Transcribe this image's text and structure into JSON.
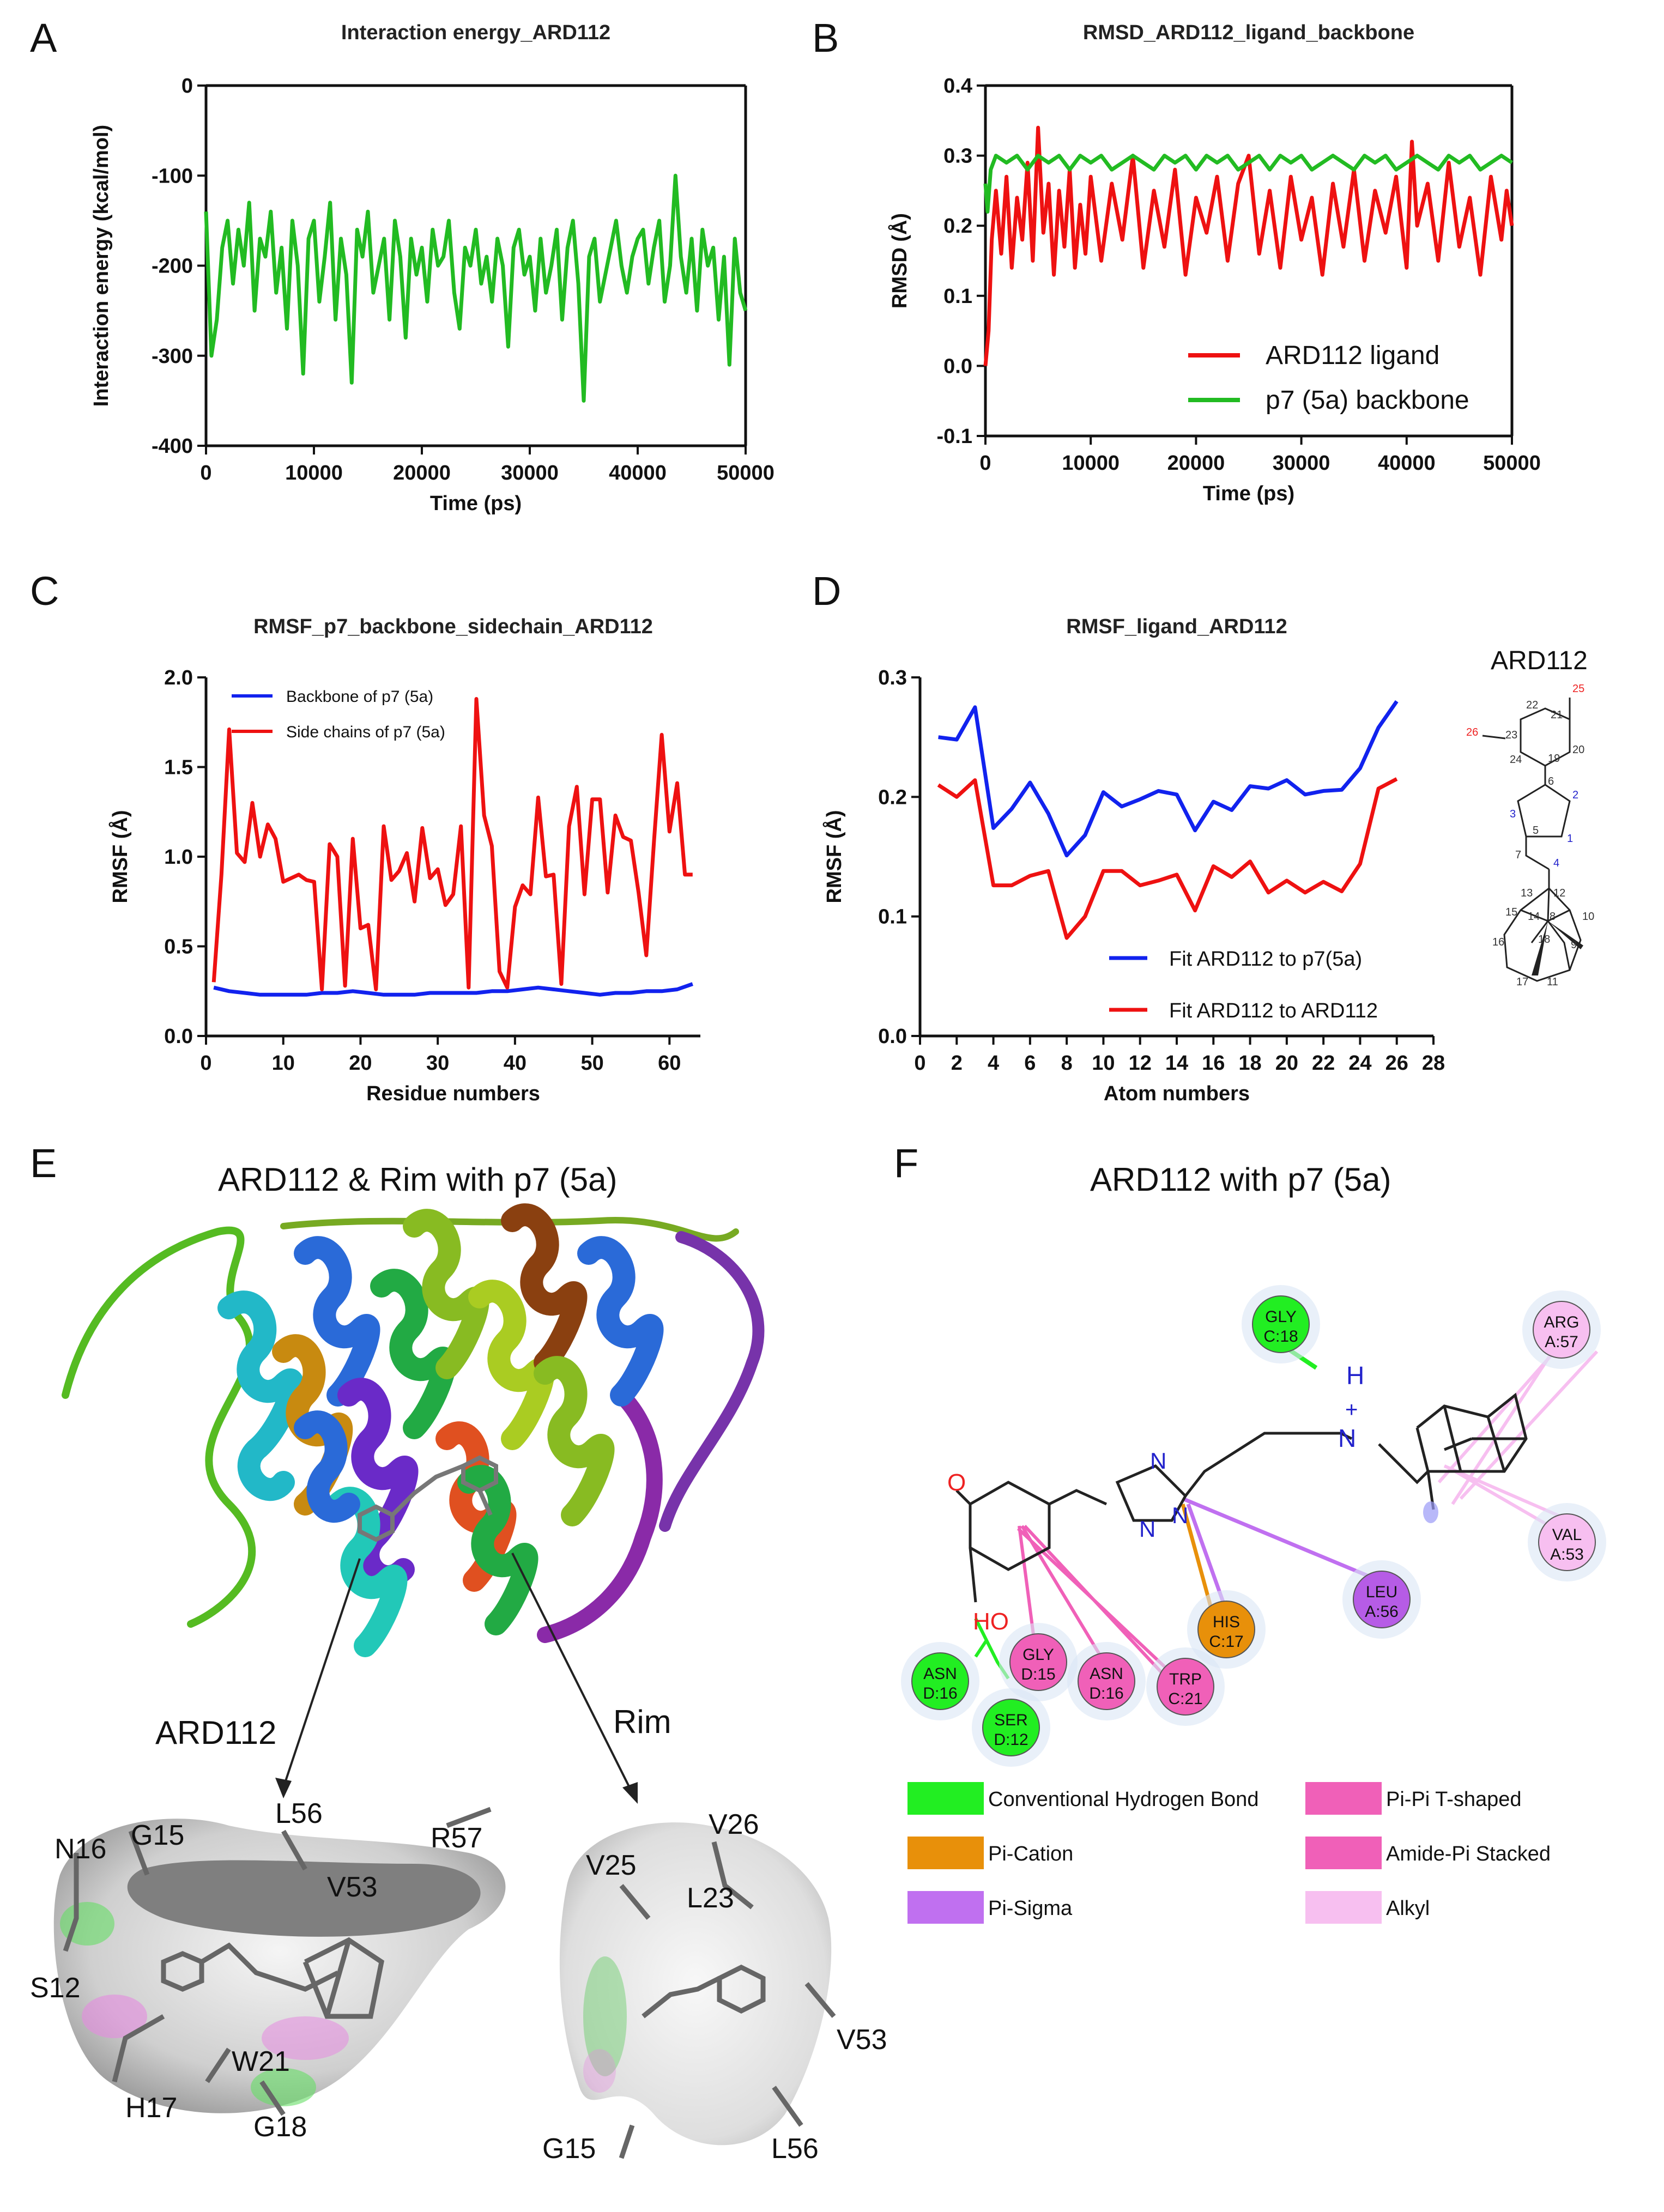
{
  "panels": {
    "A": "A",
    "B": "B",
    "C": "C",
    "D": "D",
    "E": "E",
    "F": "F"
  },
  "chart_data": [
    {
      "panel": "A",
      "type": "line",
      "title": "Interaction energy_ARD112",
      "xlabel": "Time (ps)",
      "ylabel": "Interaction energy (kcal/mol)",
      "xlim": [
        0,
        50000
      ],
      "ylim": [
        -400,
        0
      ],
      "xticks": [
        0,
        10000,
        20000,
        30000,
        40000,
        50000
      ],
      "yticks": [
        0,
        -100,
        -200,
        -300,
        -400
      ],
      "series": [
        {
          "name": "Interaction energy",
          "color": "#22bb22",
          "x": [
            0,
            500,
            1000,
            1500,
            2000,
            2500,
            3000,
            3500,
            4000,
            4500,
            5000,
            5500,
            6000,
            6500,
            7000,
            7500,
            8000,
            8500,
            9000,
            9500,
            10000,
            10500,
            11000,
            11500,
            12000,
            12500,
            13000,
            13500,
            14000,
            14500,
            15000,
            15500,
            16000,
            16500,
            17000,
            17500,
            18000,
            18500,
            19000,
            19500,
            20000,
            20500,
            21000,
            21500,
            22000,
            22500,
            23000,
            23500,
            24000,
            24500,
            25000,
            25500,
            26000,
            26500,
            27000,
            27500,
            28000,
            28500,
            29000,
            29500,
            30000,
            30500,
            31000,
            31500,
            32000,
            32500,
            33000,
            33500,
            34000,
            34500,
            35000,
            35500,
            36000,
            36500,
            37000,
            37500,
            38000,
            38500,
            39000,
            39500,
            40000,
            40500,
            41000,
            41500,
            42000,
            42500,
            43000,
            43500,
            44000,
            44500,
            45000,
            45500,
            46000,
            46500,
            47000,
            47500,
            48000,
            48500,
            49000,
            49500,
            50000
          ],
          "values": [
            -140,
            -300,
            -260,
            -180,
            -150,
            -220,
            -160,
            -200,
            -130,
            -250,
            -170,
            -190,
            -140,
            -230,
            -180,
            -270,
            -150,
            -200,
            -320,
            -170,
            -150,
            -240,
            -190,
            -130,
            -260,
            -170,
            -210,
            -330,
            -160,
            -190,
            -140,
            -230,
            -200,
            -170,
            -260,
            -150,
            -190,
            -280,
            -170,
            -210,
            -180,
            -240,
            -160,
            -200,
            -190,
            -150,
            -230,
            -270,
            -180,
            -200,
            -160,
            -220,
            -190,
            -240,
            -170,
            -200,
            -290,
            -180,
            -160,
            -210,
            -190,
            -250,
            -170,
            -230,
            -200,
            -160,
            -260,
            -180,
            -150,
            -220,
            -350,
            -190,
            -170,
            -240,
            -210,
            -180,
            -150,
            -200,
            -230,
            -190,
            -170,
            -160,
            -220,
            -180,
            -150,
            -240,
            -200,
            -100,
            -190,
            -230,
            -170,
            -250,
            -160,
            -200,
            -180,
            -260,
            -190,
            -310,
            -170,
            -230,
            -250
          ]
        }
      ]
    },
    {
      "panel": "B",
      "type": "line",
      "title": "RMSD_ARD112_ligand_backbone",
      "xlabel": "Time (ps)",
      "ylabel": "RMSD (Å)",
      "xlim": [
        0,
        50000
      ],
      "ylim": [
        -0.1,
        0.4
      ],
      "xticks": [
        0,
        10000,
        20000,
        30000,
        40000,
        50000
      ],
      "yticks": [
        0.4,
        0.3,
        0.2,
        0.1,
        0.0,
        -0.1
      ],
      "ytick_labels": [
        "0.4",
        "0.3",
        "0.2",
        "0.1",
        "0.0",
        "-0.1"
      ],
      "legend": "bottom-right",
      "series": [
        {
          "name": "ARD112 ligand",
          "color": "#ee1111",
          "x": [
            0,
            300,
            600,
            1000,
            1500,
            2000,
            2500,
            3000,
            3500,
            4000,
            4500,
            5000,
            5500,
            6000,
            6500,
            7000,
            7500,
            8000,
            8500,
            9000,
            9500,
            10000,
            11000,
            12000,
            13000,
            14000,
            15000,
            16000,
            17000,
            18000,
            19000,
            20000,
            21000,
            22000,
            23000,
            24000,
            25000,
            26000,
            27000,
            28000,
            29000,
            30000,
            31000,
            32000,
            33000,
            34000,
            35000,
            36000,
            37000,
            38000,
            39000,
            40000,
            40500,
            41000,
            42000,
            43000,
            44000,
            45000,
            46000,
            47000,
            48000,
            49000,
            49500,
            50000
          ],
          "values": [
            0.0,
            0.05,
            0.18,
            0.25,
            0.16,
            0.27,
            0.14,
            0.24,
            0.18,
            0.29,
            0.15,
            0.34,
            0.19,
            0.26,
            0.13,
            0.25,
            0.17,
            0.28,
            0.14,
            0.23,
            0.16,
            0.27,
            0.15,
            0.26,
            0.18,
            0.3,
            0.14,
            0.25,
            0.17,
            0.28,
            0.13,
            0.24,
            0.19,
            0.27,
            0.15,
            0.26,
            0.3,
            0.16,
            0.25,
            0.14,
            0.27,
            0.18,
            0.24,
            0.13,
            0.26,
            0.17,
            0.28,
            0.15,
            0.25,
            0.19,
            0.27,
            0.14,
            0.32,
            0.2,
            0.26,
            0.15,
            0.29,
            0.17,
            0.24,
            0.13,
            0.27,
            0.18,
            0.25,
            0.2
          ]
        },
        {
          "name": "p7 (5a) backbone",
          "color": "#22bb22",
          "x": [
            0,
            200,
            500,
            1000,
            2000,
            3000,
            4000,
            5000,
            6000,
            7000,
            8000,
            9000,
            10000,
            11000,
            12000,
            13000,
            14000,
            15000,
            16000,
            17000,
            18000,
            19000,
            20000,
            21000,
            22000,
            23000,
            24000,
            25000,
            26000,
            27000,
            28000,
            29000,
            30000,
            31000,
            32000,
            33000,
            34000,
            35000,
            36000,
            37000,
            38000,
            39000,
            40000,
            41000,
            42000,
            43000,
            44000,
            45000,
            46000,
            47000,
            48000,
            49000,
            50000
          ],
          "values": [
            0.26,
            0.22,
            0.28,
            0.3,
            0.29,
            0.3,
            0.28,
            0.3,
            0.29,
            0.3,
            0.28,
            0.3,
            0.29,
            0.3,
            0.28,
            0.29,
            0.3,
            0.29,
            0.28,
            0.3,
            0.29,
            0.3,
            0.28,
            0.3,
            0.29,
            0.3,
            0.28,
            0.29,
            0.3,
            0.28,
            0.3,
            0.29,
            0.3,
            0.28,
            0.29,
            0.3,
            0.29,
            0.28,
            0.3,
            0.29,
            0.3,
            0.28,
            0.29,
            0.3,
            0.29,
            0.28,
            0.3,
            0.29,
            0.3,
            0.28,
            0.29,
            0.3,
            0.29
          ]
        }
      ]
    },
    {
      "panel": "C",
      "type": "line",
      "title": "RMSF_p7_backbone_sidechain_ARD112",
      "xlabel": "Residue numbers",
      "ylabel": "RMSF (Å)",
      "xlim": [
        0,
        64
      ],
      "ylim": [
        0,
        2.0
      ],
      "xticks": [
        0,
        10,
        20,
        30,
        40,
        50,
        60
      ],
      "yticks": [
        0.0,
        0.5,
        1.0,
        1.5,
        2.0
      ],
      "ytick_labels": [
        "0.0",
        "0.5",
        "1.0",
        "1.5",
        "2.0"
      ],
      "legend": "top-left",
      "series": [
        {
          "name": "Backbone of p7 (5a)",
          "color": "#1122ee",
          "x": [
            1,
            3,
            5,
            7,
            9,
            11,
            13,
            15,
            17,
            19,
            21,
            23,
            25,
            27,
            29,
            31,
            33,
            35,
            37,
            39,
            41,
            43,
            45,
            47,
            49,
            51,
            53,
            55,
            57,
            59,
            61,
            63
          ],
          "values": [
            0.27,
            0.25,
            0.24,
            0.23,
            0.23,
            0.23,
            0.23,
            0.24,
            0.24,
            0.25,
            0.24,
            0.23,
            0.23,
            0.23,
            0.24,
            0.24,
            0.24,
            0.24,
            0.25,
            0.25,
            0.26,
            0.27,
            0.26,
            0.25,
            0.24,
            0.23,
            0.24,
            0.24,
            0.25,
            0.25,
            0.26,
            0.29
          ]
        },
        {
          "name": "Side chains of p7 (5a)",
          "color": "#ee1111",
          "x": [
            1,
            2,
            3,
            4,
            5,
            6,
            7,
            8,
            9,
            10,
            11,
            12,
            13,
            14,
            15,
            16,
            17,
            18,
            19,
            20,
            21,
            22,
            23,
            24,
            25,
            26,
            27,
            28,
            29,
            30,
            31,
            32,
            33,
            34,
            35,
            36,
            37,
            38,
            39,
            40,
            41,
            42,
            43,
            44,
            45,
            46,
            47,
            48,
            49,
            50,
            51,
            52,
            53,
            54,
            55,
            56,
            57,
            58,
            59,
            60,
            61,
            62,
            63
          ],
          "values": [
            0.3,
            0.9,
            1.71,
            1.02,
            0.97,
            1.3,
            1.0,
            1.18,
            1.1,
            0.86,
            0.88,
            0.9,
            0.87,
            0.86,
            0.26,
            1.07,
            1.0,
            0.28,
            1.1,
            0.6,
            0.62,
            0.26,
            1.17,
            0.87,
            0.92,
            1.02,
            0.75,
            1.16,
            0.88,
            0.93,
            0.73,
            0.79,
            1.17,
            0.27,
            1.88,
            1.23,
            1.06,
            0.36,
            0.27,
            0.72,
            0.84,
            0.79,
            1.33,
            0.89,
            0.9,
            0.29,
            1.17,
            1.39,
            0.79,
            1.32,
            1.32,
            0.8,
            1.23,
            1.11,
            1.09,
            0.8,
            0.45,
            1.09,
            1.68,
            1.14,
            1.41,
            0.9,
            0.9
          ]
        }
      ]
    },
    {
      "panel": "D",
      "type": "line",
      "title": "RMSF_ligand_ARD112",
      "xlabel": "Atom numbers",
      "ylabel": "RMSF (Å)",
      "xlim": [
        0,
        28
      ],
      "ylim": [
        0,
        0.3
      ],
      "xticks": [
        0,
        2,
        4,
        6,
        8,
        10,
        12,
        14,
        16,
        18,
        20,
        22,
        24,
        26,
        28
      ],
      "yticks": [
        0.0,
        0.1,
        0.2,
        0.3
      ],
      "ytick_labels": [
        "0.0",
        "0.1",
        "0.2",
        "0.3"
      ],
      "legend": "bottom-right",
      "series": [
        {
          "name": "Fit ARD112 to p7(5a)",
          "color": "#1122ee",
          "x": [
            1,
            2,
            3,
            4,
            5,
            6,
            7,
            8,
            9,
            10,
            11,
            12,
            13,
            14,
            15,
            16,
            17,
            18,
            19,
            20,
            21,
            22,
            23,
            24,
            25,
            26
          ],
          "values": [
            0.25,
            0.248,
            0.275,
            0.174,
            0.19,
            0.212,
            0.186,
            0.151,
            0.168,
            0.204,
            0.192,
            0.198,
            0.205,
            0.202,
            0.172,
            0.196,
            0.189,
            0.209,
            0.207,
            0.214,
            0.202,
            0.205,
            0.206,
            0.224,
            0.258,
            0.28
          ]
        },
        {
          "name": "Fit ARD112 to ARD112",
          "color": "#ee1111",
          "x": [
            1,
            2,
            3,
            4,
            5,
            6,
            7,
            8,
            9,
            10,
            11,
            12,
            13,
            14,
            15,
            16,
            17,
            18,
            19,
            20,
            21,
            22,
            23,
            24,
            25,
            26
          ],
          "values": [
            0.21,
            0.2,
            0.214,
            0.126,
            0.126,
            0.134,
            0.138,
            0.082,
            0.1,
            0.138,
            0.138,
            0.126,
            0.13,
            0.135,
            0.105,
            0.142,
            0.133,
            0.146,
            0.12,
            0.13,
            0.12,
            0.129,
            0.121,
            0.144,
            0.207,
            0.215
          ]
        }
      ]
    }
  ],
  "structure_D": {
    "title": "ARD112",
    "atoms": [
      "25",
      "22",
      "21",
      "26",
      "23",
      "20",
      "24",
      "19",
      "6",
      "2",
      "3",
      "1",
      "5",
      "7",
      "4",
      "13",
      "12",
      "15",
      "14",
      "8",
      "18",
      "10",
      "16",
      "9",
      "17",
      "11"
    ]
  },
  "panel_E": {
    "title": "ARD112 & Rim with p7 (5a)",
    "label_left": "ARD112",
    "label_right": "Rim",
    "residues_left": [
      "N16",
      "G15",
      "L56",
      "R57",
      "V53",
      "S12",
      "W21",
      "H17",
      "G18"
    ],
    "residues_right": [
      "V26",
      "V25",
      "L23",
      "V53",
      "G15",
      "L56"
    ]
  },
  "panel_F": {
    "title": "ARD112 with p7 (5a)",
    "atoms": {
      "O": "O",
      "HO": "HO",
      "N1": "N",
      "N2": "N",
      "N3": "N",
      "NH": "N",
      "H": "H",
      "plus": "+"
    },
    "residues": [
      {
        "l1": "GLY",
        "l2": "C:18",
        "type": "Conventional Hydrogen Bond"
      },
      {
        "l1": "ARG",
        "l2": "A:57",
        "type": "Alkyl"
      },
      {
        "l1": "VAL",
        "l2": "A:53",
        "type": "Alkyl"
      },
      {
        "l1": "LEU",
        "l2": "A:56",
        "type": "Pi-Sigma"
      },
      {
        "l1": "HIS",
        "l2": "C:17",
        "type": "Pi-Cation"
      },
      {
        "l1": "TRP",
        "l2": "C:21",
        "type": "Pi-Pi T-shaped"
      },
      {
        "l1": "ASN",
        "l2": "D:16",
        "type": "Pi-Pi T-shaped"
      },
      {
        "l1": "GLY",
        "l2": "D:15",
        "type": "Amide-Pi Stacked"
      },
      {
        "l1": "ASN",
        "l2": "D:16",
        "type": "Conventional Hydrogen Bond"
      },
      {
        "l1": "SER",
        "l2": "D:12",
        "type": "Conventional Hydrogen Bond"
      }
    ],
    "key": [
      {
        "label": "Conventional Hydrogen Bond",
        "color": "#22ee22"
      },
      {
        "label": "Pi-Cation",
        "color": "#e8900a"
      },
      {
        "label": "Pi-Sigma",
        "color": "#c070f0"
      },
      {
        "label": "Pi-Pi T-shaped",
        "color": "#f060b8"
      },
      {
        "label": "Amide-Pi Stacked",
        "color": "#f060b8"
      },
      {
        "label": "Alkyl",
        "color": "#f7bff0"
      }
    ]
  }
}
